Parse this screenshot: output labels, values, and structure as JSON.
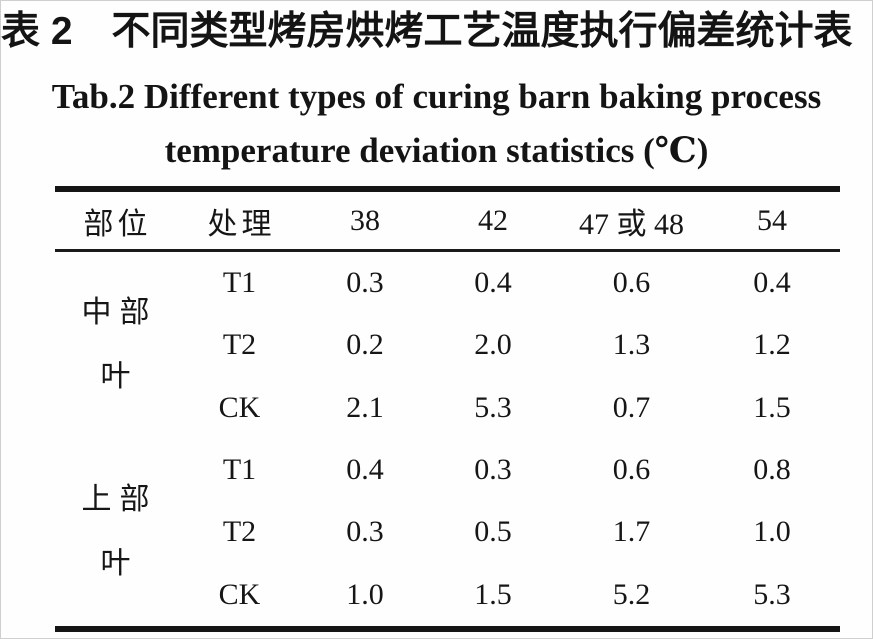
{
  "captions": {
    "title_cn": "表 2　不同类型烤房烘烤工艺温度执行偏差统计表（℃）",
    "title_en_line1": "Tab.2 Different types of curing barn baking process",
    "title_en_line2": "temperature deviation statistics (℃)"
  },
  "table": {
    "headers": [
      "部位",
      "处理",
      "38",
      "42",
      "47 或 48",
      "54"
    ],
    "groups": [
      {
        "part": [
          "中部",
          "叶"
        ],
        "rows": [
          {
            "treatment": "T1",
            "values": [
              "0.3",
              "0.4",
              "0.6",
              "0.4"
            ]
          },
          {
            "treatment": "T2",
            "values": [
              "0.2",
              "2.0",
              "1.3",
              "1.2"
            ]
          },
          {
            "treatment": "CK",
            "values": [
              "2.1",
              "5.3",
              "0.7",
              "1.5"
            ]
          }
        ]
      },
      {
        "part": [
          "上部",
          "叶"
        ],
        "rows": [
          {
            "treatment": "T1",
            "values": [
              "0.4",
              "0.3",
              "0.6",
              "0.8"
            ]
          },
          {
            "treatment": "T2",
            "values": [
              "0.3",
              "0.5",
              "1.7",
              "1.0"
            ]
          },
          {
            "treatment": "CK",
            "values": [
              "1.0",
              "1.5",
              "5.2",
              "5.3"
            ]
          }
        ]
      }
    ]
  },
  "chart_data": {
    "type": "table",
    "title": "表 2 不同类型烤房烘烤工艺温度执行偏差统计表（℃） / Tab.2 Different types of curing barn baking process temperature deviation statistics (℃)",
    "columns": [
      "部位",
      "处理",
      "38",
      "42",
      "47 或 48",
      "54"
    ],
    "rows": [
      [
        "中部叶",
        "T1",
        0.3,
        0.4,
        0.6,
        0.4
      ],
      [
        "中部叶",
        "T2",
        0.2,
        2.0,
        1.3,
        1.2
      ],
      [
        "中部叶",
        "CK",
        2.1,
        5.3,
        0.7,
        1.5
      ],
      [
        "上部叶",
        "T1",
        0.4,
        0.3,
        0.6,
        0.8
      ],
      [
        "上部叶",
        "T2",
        0.3,
        0.5,
        1.7,
        1.0
      ],
      [
        "上部叶",
        "CK",
        1.0,
        1.5,
        5.2,
        5.3
      ]
    ]
  },
  "colors": {
    "text": "#141414",
    "rule": "#151515",
    "background": "#fefefe"
  }
}
